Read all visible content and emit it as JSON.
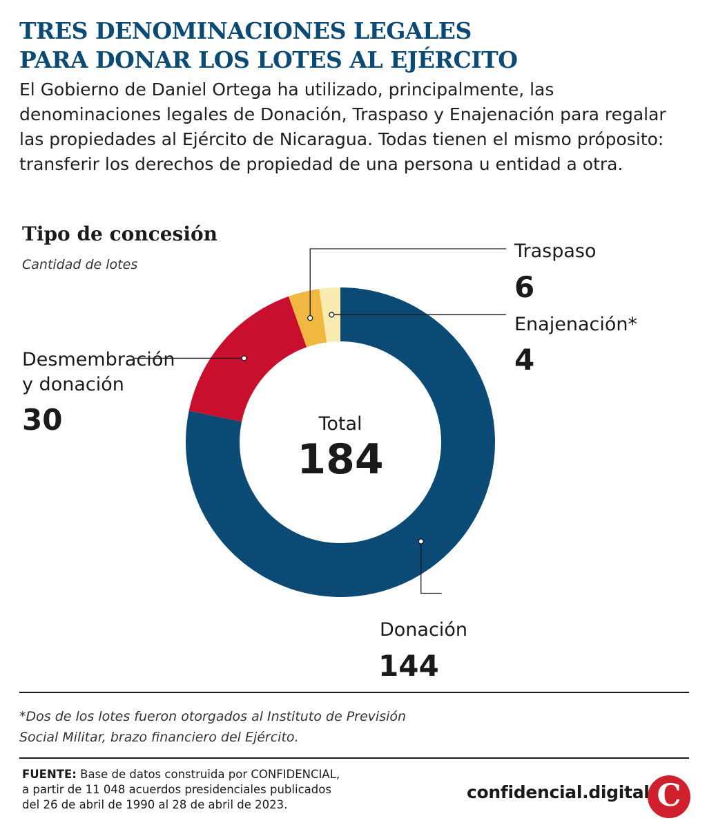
{
  "header": {
    "title_line1": "TRES DENOMINACIONES LEGALES",
    "title_line2": "PARA DONAR LOS LOTES AL EJÉRCITO",
    "intro": "El Gobierno de Daniel Ortega ha utilizado, principalmente, las denominaciones legales de Donación, Traspaso y Enajenación para regalar las propiedades al Ejército de Nicaragua. Todas tienen el mismo próposito: transferir los derechos de propiedad de una persona u entidad a otra."
  },
  "chart_data": {
    "type": "pie",
    "title": "Tipo de concesión",
    "subtitle": "Cantidad de lotes",
    "center_label": "Total",
    "total": 184,
    "slices": [
      {
        "name": "Donación",
        "value": 144,
        "color": "#0b4a75"
      },
      {
        "name": "Desmembración y donación",
        "label_lines": [
          "Desmembración",
          "y donación"
        ],
        "value": 30,
        "color": "#c8102e"
      },
      {
        "name": "Traspaso",
        "value": 6,
        "color": "#f0b840"
      },
      {
        "name": "Enajenación*",
        "value": 4,
        "color": "#faebb0"
      }
    ]
  },
  "footnote": {
    "line1": "*Dos de los lotes fueron otorgados al Instituto de Previsión",
    "line2": "Social Militar, brazo financiero del Ejército."
  },
  "source": {
    "label": "FUENTE:",
    "line1": " Base de datos construida por CONFIDENCIAL,",
    "line2": "a partir de 11 048 acuerdos presidenciales publicados",
    "line3": "del 26 de abril de 1990 al 28 de abril de 2023."
  },
  "brand": {
    "name": "confidencial.digital",
    "logo_letter": "C",
    "logo_color": "#d0202e"
  }
}
